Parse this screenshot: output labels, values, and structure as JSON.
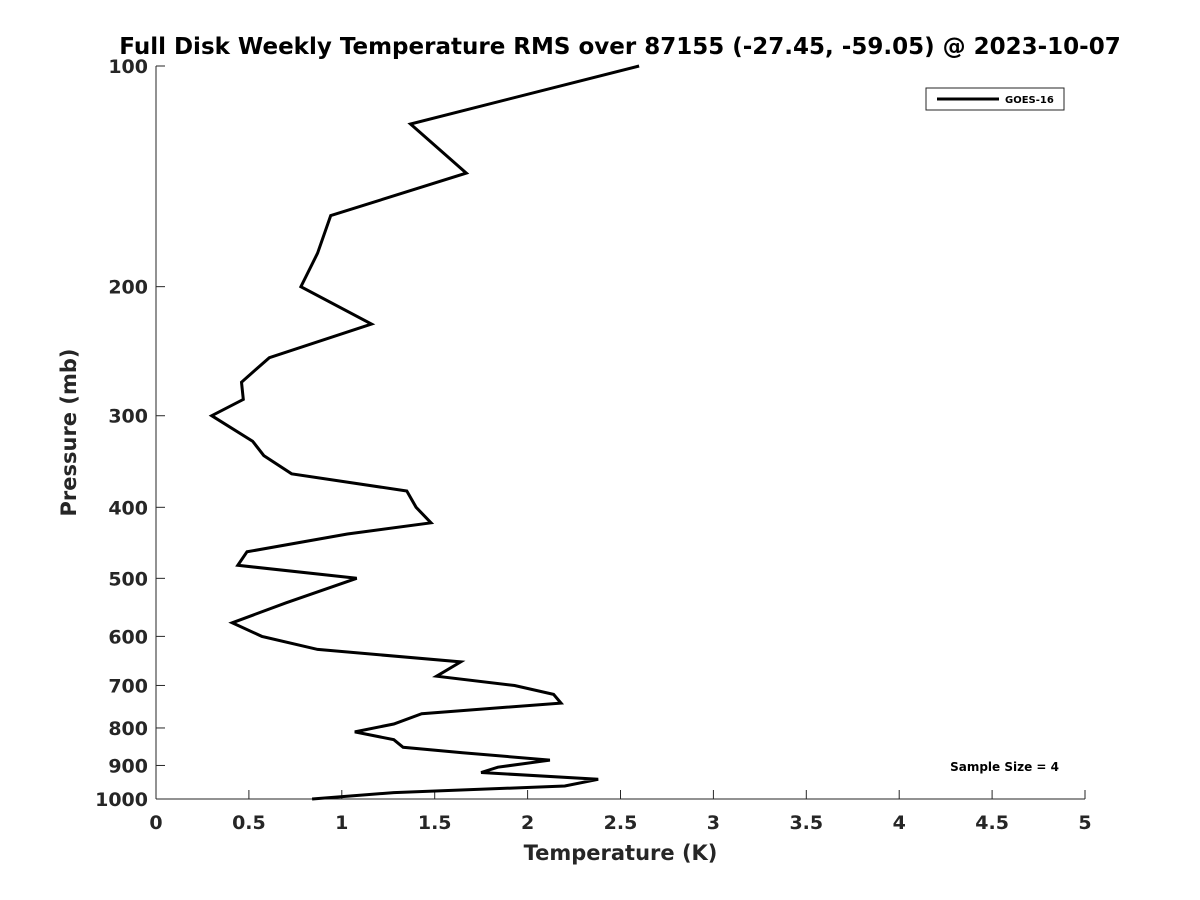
{
  "chart_data": {
    "type": "line",
    "title": "Full Disk Weekly Temperature RMS over 87155 (-27.45, -59.05) @ 2023-10-07",
    "xlabel": "Temperature (K)",
    "ylabel": "Pressure (mb)",
    "xlim": [
      0,
      5
    ],
    "ylim": [
      100,
      1000
    ],
    "y_scale": "log",
    "y_reversed": true,
    "grid": false,
    "x_ticks": [
      0,
      0.5,
      1,
      1.5,
      2,
      2.5,
      3,
      3.5,
      4,
      4.5,
      5
    ],
    "x_tick_labels": [
      "0",
      "0.5",
      "1",
      "1.5",
      "2",
      "2.5",
      "3",
      "3.5",
      "4",
      "4.5",
      "5"
    ],
    "y_ticks": [
      100,
      200,
      300,
      400,
      500,
      600,
      700,
      800,
      900,
      1000
    ],
    "y_tick_labels": [
      "100",
      "200",
      "300",
      "400",
      "500",
      "600",
      "700",
      "800",
      "900",
      "1000"
    ],
    "legend_position": "top-right",
    "series": [
      {
        "name": "GOES-16",
        "color": "#000000",
        "points": [
          [
            2.6,
            100
          ],
          [
            1.37,
            120
          ],
          [
            1.67,
            140
          ],
          [
            0.94,
            160
          ],
          [
            0.87,
            180
          ],
          [
            0.78,
            200
          ],
          [
            1.16,
            225
          ],
          [
            0.61,
            250
          ],
          [
            0.46,
            270
          ],
          [
            0.47,
            285
          ],
          [
            0.3,
            300
          ],
          [
            0.52,
            325
          ],
          [
            0.58,
            340
          ],
          [
            0.73,
            360
          ],
          [
            1.35,
            380
          ],
          [
            1.4,
            400
          ],
          [
            1.48,
            420
          ],
          [
            1.03,
            435
          ],
          [
            0.49,
            460
          ],
          [
            0.44,
            480
          ],
          [
            1.08,
            500
          ],
          [
            0.7,
            540
          ],
          [
            0.41,
            575
          ],
          [
            0.57,
            600
          ],
          [
            0.87,
            625
          ],
          [
            1.64,
            650
          ],
          [
            1.51,
            680
          ],
          [
            1.93,
            700
          ],
          [
            2.14,
            720
          ],
          [
            2.18,
            740
          ],
          [
            1.43,
            765
          ],
          [
            1.28,
            790
          ],
          [
            1.07,
            810
          ],
          [
            1.28,
            830
          ],
          [
            1.33,
            850
          ],
          [
            1.65,
            865
          ],
          [
            2.12,
            885
          ],
          [
            1.84,
            905
          ],
          [
            1.75,
            920
          ],
          [
            2.38,
            940
          ],
          [
            2.2,
            960
          ],
          [
            1.28,
            980
          ],
          [
            0.84,
            1000
          ]
        ]
      }
    ],
    "annotations": [
      {
        "text": "Sample Size = 4",
        "position": "bottom-right"
      }
    ]
  }
}
